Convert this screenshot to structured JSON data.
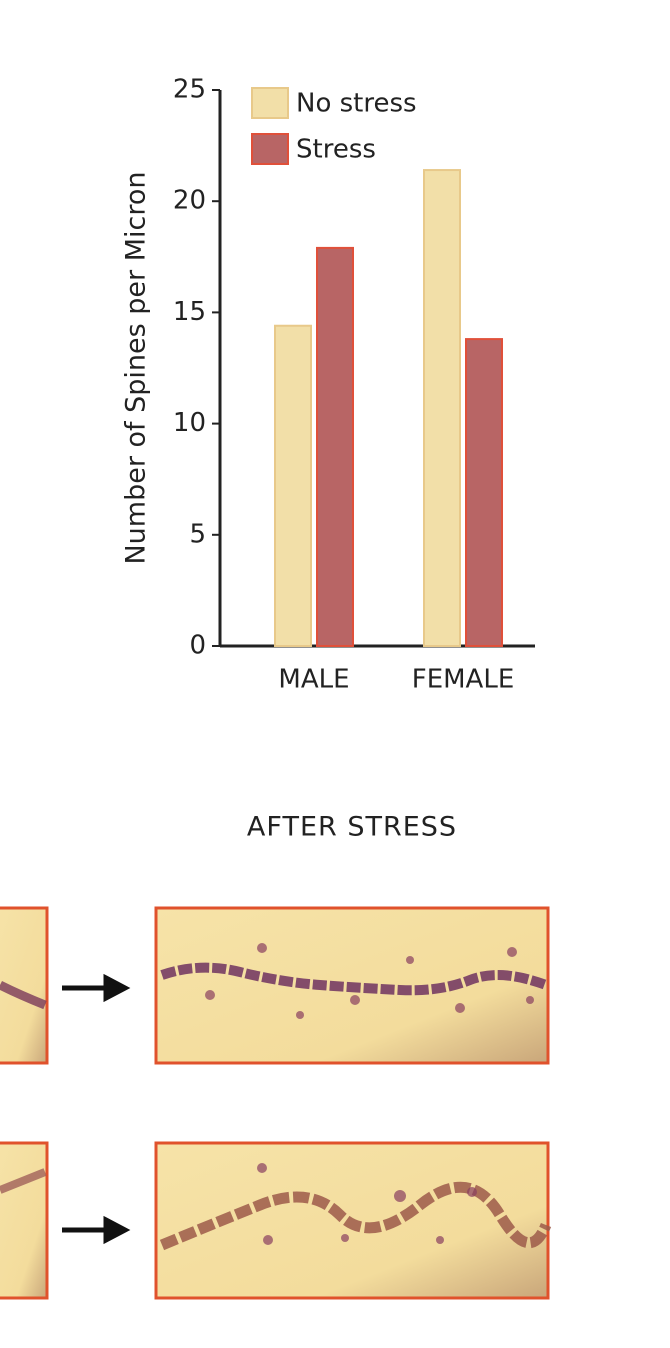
{
  "chart_data": {
    "type": "bar",
    "y_label": "Number of Spines per Micron",
    "categories": [
      "MALE",
      "FEMALE"
    ],
    "series": [
      {
        "name": "No stress",
        "color": "#f2dfa8",
        "values": [
          14.4,
          21.4
        ]
      },
      {
        "name": "Stress",
        "color": "#b86565",
        "values": [
          17.9,
          13.8
        ]
      }
    ],
    "ylim": [
      0,
      25
    ],
    "yticks": [
      0,
      5,
      10,
      15,
      20,
      25
    ],
    "legend": "top-left"
  },
  "micrograph_panel": {
    "title": "AFTER STRESS"
  }
}
